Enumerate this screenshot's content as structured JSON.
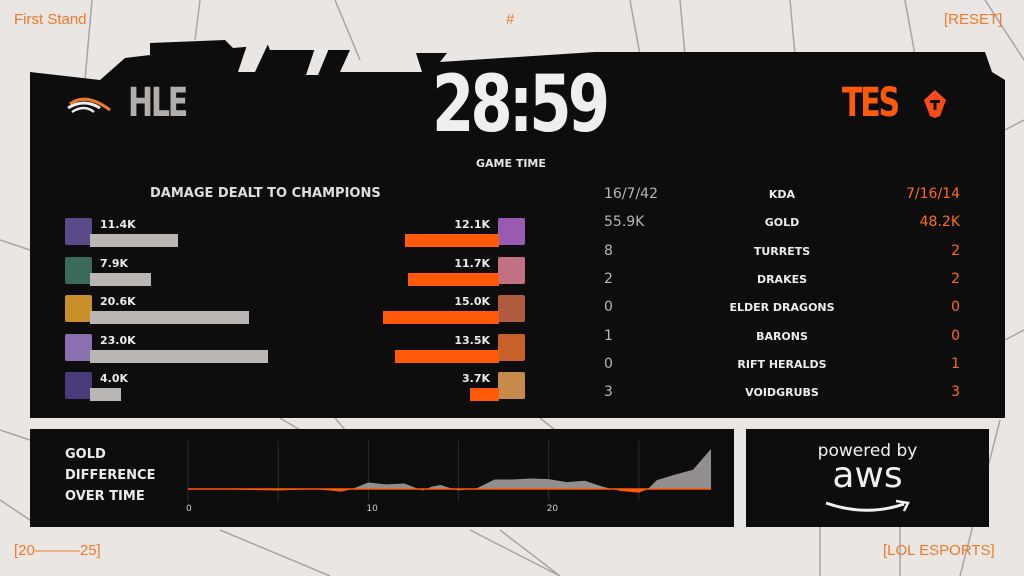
{
  "header": {
    "left": "First Stand",
    "center": "#",
    "right": "[RESET]"
  },
  "footer": {
    "left": "[20———25]",
    "right": "[LOL ESPORTS]"
  },
  "teams": {
    "blue": {
      "name": "HLE",
      "logo_text": "Hanwha Life Esports",
      "color": "#b0adab"
    },
    "red": {
      "name": "TES",
      "color": "#ff5a0a"
    }
  },
  "clock": {
    "time": "28:59",
    "label": "GAME TIME"
  },
  "damage": {
    "title": "DAMAGE DEALT TO CHAMPIONS",
    "blue": [
      {
        "value": "11.4K",
        "num": 11.4,
        "color": "#5a4a8a"
      },
      {
        "value": "7.9K",
        "num": 7.9,
        "color": "#3a6a5a"
      },
      {
        "value": "20.6K",
        "num": 20.6,
        "color": "#c9902a"
      },
      {
        "value": "23.0K",
        "num": 23.0,
        "color": "#8a70b0"
      },
      {
        "value": "4.0K",
        "num": 4.0,
        "color": "#4a3a7a"
      }
    ],
    "red": [
      {
        "value": "12.1K",
        "num": 12.1,
        "color": "#9a5ab0"
      },
      {
        "value": "11.7K",
        "num": 11.7,
        "color": "#c07080"
      },
      {
        "value": "15.0K",
        "num": 15.0,
        "color": "#b05a40"
      },
      {
        "value": "13.5K",
        "num": 13.5,
        "color": "#c8602a"
      },
      {
        "value": "3.7K",
        "num": 3.7,
        "color": "#c88a4a"
      }
    ]
  },
  "stats": [
    {
      "label": "KDA",
      "blue": "16/7/42",
      "red": "7/16/14"
    },
    {
      "label": "GOLD",
      "blue": "55.9K",
      "red": "48.2K"
    },
    {
      "label": "TURRETS",
      "blue": "8",
      "red": "2"
    },
    {
      "label": "DRAKES",
      "blue": "2",
      "red": "2"
    },
    {
      "label": "ELDER DRAGONS",
      "blue": "0",
      "red": "0"
    },
    {
      "label": "BARONS",
      "blue": "1",
      "red": "0"
    },
    {
      "label": "RIFT HERALDS",
      "blue": "0",
      "red": "1"
    },
    {
      "label": "VOIDGRUBS",
      "blue": "3",
      "red": "3"
    }
  ],
  "gold_chart": {
    "title_lines": [
      "GOLD",
      "DIFFERENCE",
      "OVER TIME"
    ]
  },
  "chart_data": {
    "type": "area",
    "title": "GOLD DIFFERENCE OVER TIME",
    "x_ticks": [
      "0",
      "10",
      "20"
    ],
    "xlim": [
      0,
      29
    ],
    "grid": true,
    "positive_color": "#a9a6a4",
    "negative_color": "#ff5a0a",
    "x": [
      0,
      1.3,
      5,
      7,
      8.5,
      9.1,
      10,
      11,
      12,
      13,
      13.5,
      14,
      15,
      16,
      17,
      18,
      19,
      20,
      21,
      22,
      23,
      24,
      25,
      25.5,
      26,
      27,
      28,
      29
    ],
    "y": [
      0,
      0,
      -300,
      0,
      -500,
      0,
      1260,
      880,
      1070,
      -300,
      440,
      760,
      -300,
      130,
      1830,
      1830,
      2020,
      1900,
      1320,
      1580,
      440,
      -380,
      -690,
      0,
      1700,
      2770,
      3700,
      7700
    ]
  },
  "sponsor": {
    "line1": "powered by",
    "line2": "aws"
  }
}
